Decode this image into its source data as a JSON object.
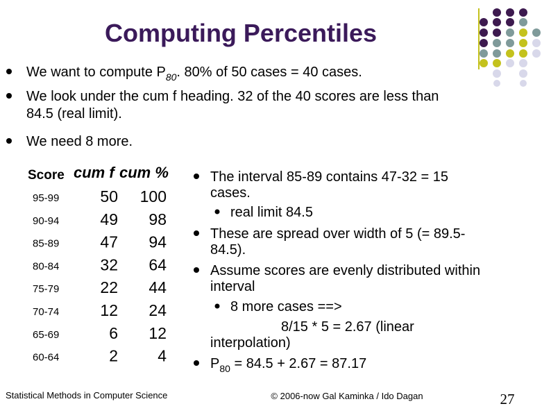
{
  "title": "Computing Percentiles",
  "bullets": [
    {
      "text": "We want to compute P",
      "subscript": "80",
      "text_after": ".  80% of 50 cases = 40 cases."
    },
    {
      "lines": [
        "We look under the cum f heading. 32 of the 40 scores are less than",
        "84.5 (real limit)."
      ]
    },
    {
      "text": "We need 8 more."
    }
  ],
  "table": {
    "header": [
      "Score",
      "cum f",
      "cum %"
    ],
    "rows": [
      [
        "95-99",
        50,
        100
      ],
      [
        "90-94",
        49,
        98
      ],
      [
        "85-89",
        47,
        94
      ],
      [
        "80-84",
        32,
        64
      ],
      [
        "75-79",
        22,
        44
      ],
      [
        "70-74",
        12,
        24
      ],
      [
        "65-69",
        6,
        12
      ],
      [
        "60-64",
        2,
        4
      ]
    ]
  },
  "right_bullets": [
    {
      "lines": [
        "The interval 85-89 contains 47-32 = 15",
        "cases."
      ],
      "sub": [
        "real limit 84.5"
      ]
    },
    {
      "lines": [
        "These are spread over width of 5 (= 89.5-",
        "84.5)."
      ]
    },
    {
      "lines": [
        "Assume scores are evenly distributed within",
        "interval"
      ],
      "sub": [
        "8 more cases ==>",
        "8/15 * 5 = 2.67 (linear",
        "interpolation)"
      ]
    },
    {
      "text": "P",
      "subscript": "80",
      "text_after": " = 84.5 + 2.67 = 87.17"
    }
  ],
  "footer": {
    "left": "Statistical Methods in Computer Science",
    "center": "© 2006-now  Gal Kaminka / Ido Dagan",
    "page": "27"
  }
}
